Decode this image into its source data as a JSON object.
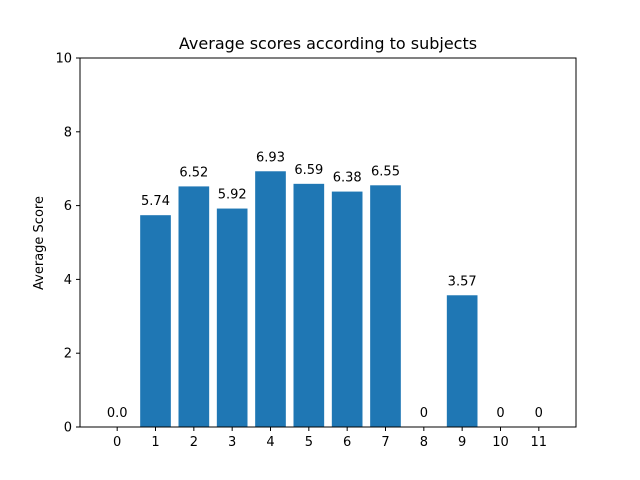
{
  "chart_data": {
    "type": "bar",
    "title": "Average scores according to subjects",
    "xlabel": "",
    "ylabel": "Average Score",
    "categories": [
      "0",
      "1",
      "2",
      "3",
      "4",
      "5",
      "6",
      "7",
      "8",
      "9",
      "10",
      "11"
    ],
    "values": [
      0.0,
      5.74,
      6.52,
      5.92,
      6.93,
      6.59,
      6.38,
      6.55,
      0,
      3.57,
      0,
      0
    ],
    "data_labels": [
      "0.0",
      "5.74",
      "6.52",
      "5.92",
      "6.93",
      "6.59",
      "6.38",
      "6.55",
      "0",
      "3.57",
      "0",
      "0"
    ],
    "ylim": [
      0,
      10
    ],
    "yticks": [
      "0",
      "2",
      "4",
      "6",
      "8",
      "10"
    ],
    "grid": false,
    "bar_color": "#1f77b4"
  }
}
